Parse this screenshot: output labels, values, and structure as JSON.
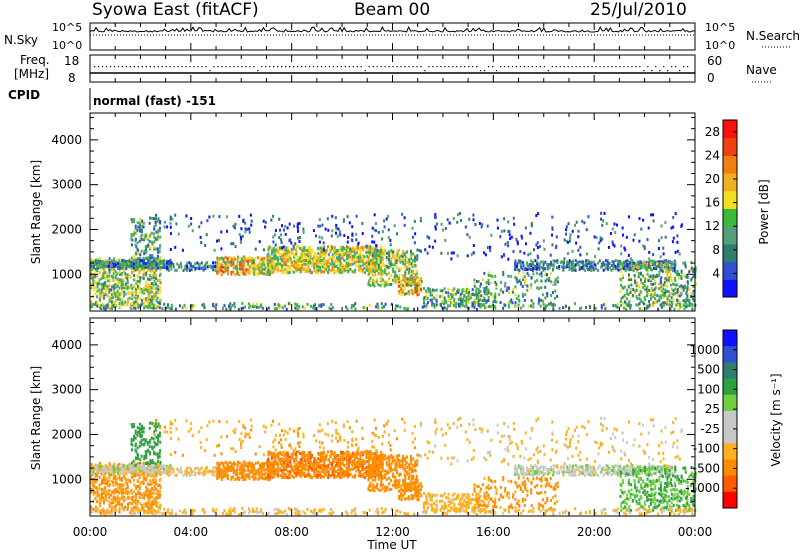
{
  "header": {
    "station": "Syowa East (fitACF)",
    "beam": "Beam 00",
    "date": "25/Jul/2010"
  },
  "top_panels": {
    "nsky_label": "N.Sky",
    "nsearch_label": "N.Search",
    "nsky_ticks": [
      "10^5",
      "10^0"
    ],
    "freq_label_1": "Freq.",
    "freq_label_2": "[MHz]",
    "freq_ticks": [
      "18",
      "8"
    ],
    "nave_label": "Nave",
    "nave_ticks": [
      "60",
      "0"
    ],
    "cpid_label": "CPID",
    "cpid_value": "normal (fast) -151"
  },
  "colors": {
    "power": [
      "#1010ff",
      "#3050d0",
      "#2e7d70",
      "#55a07a",
      "#3cb83c",
      "#f0e020",
      "#f0b020",
      "#f08010",
      "#f04010",
      "#ff1010"
    ],
    "velocity": [
      "#ff0000",
      "#ff5a00",
      "#ff8c00",
      "#ffb020",
      "#c8c8c8",
      "#c8c8c8",
      "#70d040",
      "#2ea040",
      "#2e7d70",
      "#3050d0",
      "#1010ff"
    ]
  },
  "chart_data": [
    {
      "type": "heatmap",
      "name": "power",
      "ylabel": "Slant Range [km]",
      "yticks": [
        "4000",
        "3000",
        "2000",
        "1000"
      ],
      "ylim": [
        180,
        4600
      ],
      "colorbar_label": "Power [dB]",
      "colorbar_ticks": [
        "28",
        "24",
        "20",
        "16",
        "12",
        "8",
        "4"
      ],
      "colorbar_range": [
        0,
        30
      ]
    },
    {
      "type": "heatmap",
      "name": "velocity",
      "ylabel": "Slant Range [km]",
      "yticks": [
        "4000",
        "3000",
        "2000",
        "1000"
      ],
      "ylim": [
        180,
        4600
      ],
      "colorbar_label": "Velocity [m s⁻¹]",
      "colorbar_ticks": [
        "1000",
        "500",
        "100",
        "25",
        "-25",
        "-100",
        "-500",
        "-1000"
      ],
      "xlabel": "Time UT",
      "xticks": [
        "00:00",
        "04:00",
        "08:00",
        "12:00",
        "16:00",
        "20:00",
        "00:00"
      ],
      "xlim": [
        0,
        24
      ]
    }
  ]
}
